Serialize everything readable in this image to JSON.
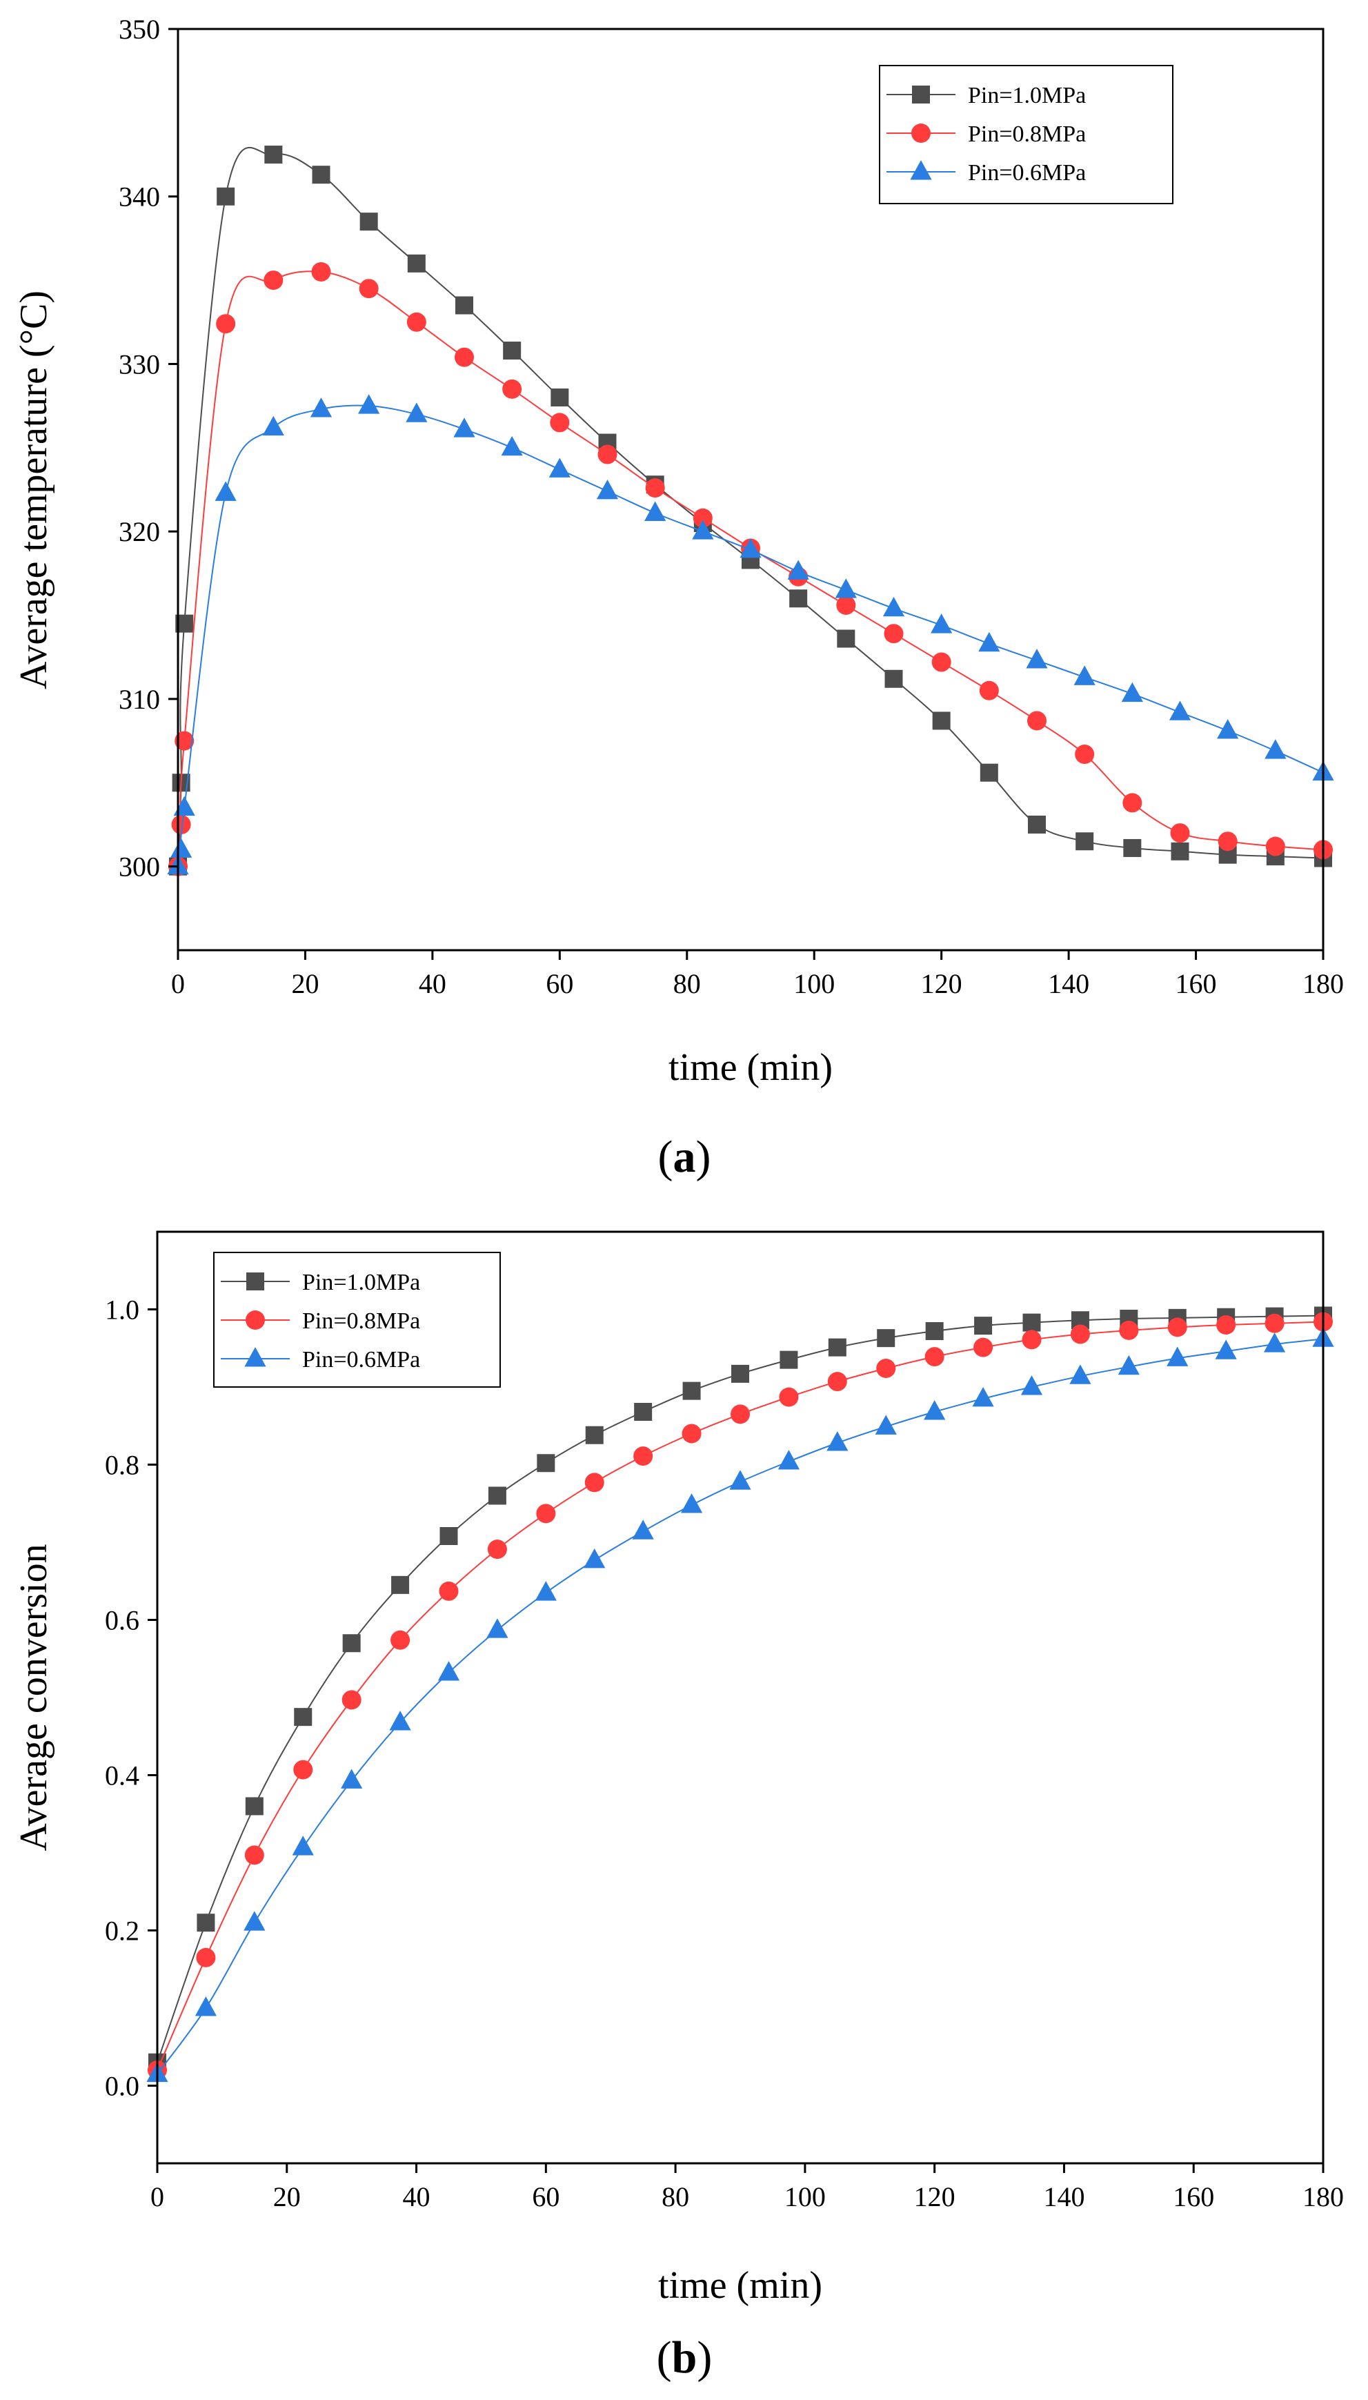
{
  "chart_data": [
    {
      "type": "line",
      "panel_label": "(a)",
      "panel_open": "(",
      "panel_letter": "a",
      "panel_close": ")",
      "title": "",
      "xlabel": "time (min)",
      "ylabel": "Average temperature (°C)",
      "xlim": [
        0,
        180
      ],
      "ylim": [
        295,
        350
      ],
      "xticks": [
        0,
        20,
        40,
        60,
        80,
        100,
        120,
        140,
        160,
        180
      ],
      "yticks": [
        300,
        310,
        320,
        330,
        340,
        350
      ],
      "legend_position": "top-right",
      "series": [
        {
          "name": "Pin=1.0MPa",
          "color": "#4d4d4d",
          "marker": "square",
          "x": [
            0,
            0.5,
            1,
            7.5,
            15,
            22.5,
            30,
            37.5,
            45,
            52.5,
            60,
            67.5,
            75,
            82.5,
            90,
            97.5,
            105,
            112.5,
            120,
            127.5,
            135,
            142.5,
            150,
            157.5,
            165,
            172.5,
            180
          ],
          "values": [
            300,
            305,
            314.5,
            340,
            342.5,
            341.3,
            338.5,
            336,
            333.5,
            330.8,
            328,
            325.3,
            322.8,
            320.5,
            318.3,
            316,
            313.6,
            311.2,
            308.7,
            305.6,
            302.5,
            301.5,
            301.1,
            300.9,
            300.7,
            300.6,
            300.5
          ]
        },
        {
          "name": "Pin=0.8MPa",
          "color": "#ff3b3b",
          "marker": "circle",
          "x": [
            0,
            0.5,
            1,
            7.5,
            15,
            22.5,
            30,
            37.5,
            45,
            52.5,
            60,
            67.5,
            75,
            82.5,
            90,
            97.5,
            105,
            112.5,
            120,
            127.5,
            135,
            142.5,
            150,
            157.5,
            165,
            172.5,
            180
          ],
          "values": [
            300,
            302.5,
            307.5,
            332.4,
            335,
            335.5,
            334.5,
            332.5,
            330.4,
            328.5,
            326.5,
            324.6,
            322.6,
            320.8,
            319,
            317.3,
            315.6,
            313.9,
            312.2,
            310.5,
            308.7,
            306.7,
            303.8,
            302,
            301.5,
            301.2,
            301
          ]
        },
        {
          "name": "Pin=0.6MPa",
          "color": "#2a7de1",
          "marker": "triangle",
          "x": [
            0,
            0.5,
            1,
            7.5,
            15,
            22.5,
            30,
            37.5,
            45,
            52.5,
            60,
            67.5,
            75,
            82.5,
            90,
            97.5,
            105,
            112.5,
            120,
            127.5,
            135,
            142.5,
            150,
            157.5,
            165,
            172.5,
            180
          ],
          "values": [
            300,
            301,
            303.5,
            322.3,
            326.2,
            327.3,
            327.5,
            327,
            326.1,
            325,
            323.7,
            322.4,
            321.1,
            320,
            318.9,
            317.6,
            316.5,
            315.4,
            314.4,
            313.3,
            312.3,
            311.3,
            310.3,
            309.2,
            308.1,
            306.9,
            305.6
          ]
        }
      ]
    },
    {
      "type": "line",
      "panel_label": "(b)",
      "panel_open": "(",
      "panel_letter": "b",
      "panel_close": ")",
      "title": "",
      "xlabel": "time (min)",
      "ylabel": "Average conversion",
      "xlim": [
        0,
        180
      ],
      "ylim": [
        -0.1,
        1.1
      ],
      "xticks": [
        0,
        20,
        40,
        60,
        80,
        100,
        120,
        140,
        160,
        180
      ],
      "yticks": [
        0.0,
        0.2,
        0.4,
        0.6,
        0.8,
        1.0
      ],
      "ytick_labels": [
        "0.0",
        "0.2",
        "0.4",
        "0.6",
        "0.8",
        "1.0"
      ],
      "legend_position": "top-left",
      "series": [
        {
          "name": "Pin=1.0MPa",
          "color": "#4d4d4d",
          "marker": "square",
          "x": [
            0,
            7.5,
            15,
            22.5,
            30,
            37.5,
            45,
            52.5,
            60,
            67.5,
            75,
            82.5,
            90,
            97.5,
            105,
            112.5,
            120,
            127.5,
            135,
            142.5,
            150,
            157.5,
            165,
            172.5,
            180
          ],
          "values": [
            0.03,
            0.21,
            0.36,
            0.475,
            0.57,
            0.645,
            0.708,
            0.76,
            0.802,
            0.838,
            0.868,
            0.895,
            0.917,
            0.935,
            0.951,
            0.963,
            0.972,
            0.979,
            0.983,
            0.986,
            0.988,
            0.989,
            0.99,
            0.991,
            0.992
          ]
        },
        {
          "name": "Pin=0.8MPa",
          "color": "#ff3b3b",
          "marker": "circle",
          "x": [
            0,
            7.5,
            15,
            22.5,
            30,
            37.5,
            45,
            52.5,
            60,
            67.5,
            75,
            82.5,
            90,
            97.5,
            105,
            112.5,
            120,
            127.5,
            135,
            142.5,
            150,
            157.5,
            165,
            172.5,
            180
          ],
          "values": [
            0.02,
            0.165,
            0.297,
            0.407,
            0.497,
            0.574,
            0.637,
            0.691,
            0.737,
            0.777,
            0.811,
            0.84,
            0.865,
            0.887,
            0.907,
            0.924,
            0.939,
            0.951,
            0.961,
            0.968,
            0.973,
            0.977,
            0.98,
            0.982,
            0.984
          ]
        },
        {
          "name": "Pin=0.6MPa",
          "color": "#2a7de1",
          "marker": "triangle",
          "x": [
            0,
            7.5,
            15,
            22.5,
            30,
            37.5,
            45,
            52.5,
            60,
            67.5,
            75,
            82.5,
            90,
            97.5,
            105,
            112.5,
            120,
            127.5,
            135,
            142.5,
            150,
            157.5,
            165,
            172.5,
            180
          ],
          "values": [
            0.015,
            0.1,
            0.21,
            0.307,
            0.393,
            0.468,
            0.532,
            0.587,
            0.635,
            0.677,
            0.714,
            0.748,
            0.778,
            0.804,
            0.828,
            0.849,
            0.868,
            0.885,
            0.9,
            0.914,
            0.926,
            0.937,
            0.946,
            0.955,
            0.962
          ]
        }
      ]
    }
  ]
}
